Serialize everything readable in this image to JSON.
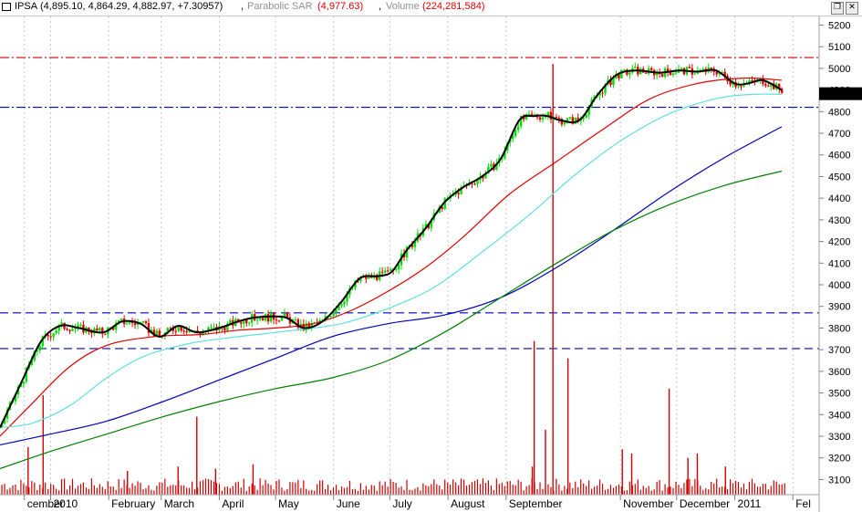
{
  "header": {
    "symbol": "IPSA",
    "ohlc": "(4,895.10, 4,864.29, 4,882.97, +7.30957)",
    "separator1": ",",
    "sar_label": "Parabolic SAR",
    "sar_value": "(4,977.63)",
    "separator2": ",",
    "volume_label": "Volume",
    "volume_value": "(224,281,584)"
  },
  "window_buttons": [
    "restore",
    "close"
  ],
  "colors": {
    "up_candle": "#00e000",
    "down_candle": "#e00000",
    "price_line": "#000000",
    "ma_red": "#e00000",
    "ma_cyan": "#5fe0e0",
    "ma_blue": "#0000c0",
    "ma_green": "#008000",
    "volume": "#d00000",
    "ref_red": "#d00000",
    "ref_blue": "#0000c0",
    "last_price_bg": "#000000",
    "last_price_fg": "#00ff00"
  },
  "chart_data": {
    "type": "candlestick",
    "ylim": [
      3030,
      5240
    ],
    "y_ticks": [
      3100,
      3200,
      3300,
      3400,
      3500,
      3600,
      3700,
      3800,
      3900,
      4000,
      4100,
      4200,
      4300,
      4400,
      4500,
      4600,
      4700,
      4800,
      4900,
      5000,
      5100,
      5200
    ],
    "last_price": "4882.97",
    "x_labels": [
      "cember",
      "2010",
      "February",
      "March",
      "April",
      "May",
      "June",
      "July",
      "August",
      "September",
      "November",
      "December",
      "2011",
      "Fel"
    ],
    "x_label_days": [
      -14,
      0,
      31,
      59,
      90,
      120,
      151,
      181,
      212,
      243,
      304,
      334,
      365,
      396
    ],
    "x_range_days": [
      -27,
      410
    ],
    "date_origin": "2010-01-01",
    "horizontal_levels": [
      {
        "value": 5050,
        "color": "red",
        "style": "dash-dot"
      },
      {
        "value": 4820,
        "color": "blue",
        "style": "dash-dot"
      },
      {
        "value": 3870,
        "color": "blue",
        "style": "dashed"
      },
      {
        "value": 3705,
        "color": "blue",
        "style": "dashed"
      }
    ],
    "price_path": [
      {
        "x": -27,
        "y": 3340
      },
      {
        "x": -15,
        "y": 3560
      },
      {
        "x": -5,
        "y": 3740
      },
      {
        "x": 5,
        "y": 3810
      },
      {
        "x": 15,
        "y": 3800
      },
      {
        "x": 28,
        "y": 3780
      },
      {
        "x": 38,
        "y": 3830
      },
      {
        "x": 48,
        "y": 3820
      },
      {
        "x": 58,
        "y": 3760
      },
      {
        "x": 68,
        "y": 3810
      },
      {
        "x": 78,
        "y": 3780
      },
      {
        "x": 90,
        "y": 3800
      },
      {
        "x": 100,
        "y": 3830
      },
      {
        "x": 110,
        "y": 3850
      },
      {
        "x": 125,
        "y": 3850
      },
      {
        "x": 135,
        "y": 3800
      },
      {
        "x": 145,
        "y": 3830
      },
      {
        "x": 155,
        "y": 3920
      },
      {
        "x": 165,
        "y": 4030
      },
      {
        "x": 175,
        "y": 4040
      },
      {
        "x": 182,
        "y": 4060
      },
      {
        "x": 190,
        "y": 4160
      },
      {
        "x": 200,
        "y": 4260
      },
      {
        "x": 210,
        "y": 4380
      },
      {
        "x": 220,
        "y": 4450
      },
      {
        "x": 230,
        "y": 4500
      },
      {
        "x": 240,
        "y": 4580
      },
      {
        "x": 250,
        "y": 4760
      },
      {
        "x": 258,
        "y": 4780
      },
      {
        "x": 265,
        "y": 4780
      },
      {
        "x": 272,
        "y": 4760
      },
      {
        "x": 282,
        "y": 4760
      },
      {
        "x": 292,
        "y": 4880
      },
      {
        "x": 302,
        "y": 4970
      },
      {
        "x": 312,
        "y": 4990
      },
      {
        "x": 325,
        "y": 4980
      },
      {
        "x": 335,
        "y": 4990
      },
      {
        "x": 345,
        "y": 4985
      },
      {
        "x": 355,
        "y": 4990
      },
      {
        "x": 365,
        "y": 4930
      },
      {
        "x": 372,
        "y": 4930
      },
      {
        "x": 380,
        "y": 4945
      },
      {
        "x": 390,
        "y": 4900
      }
    ],
    "series": [
      {
        "name": "",
        "color": "red",
        "points": [
          {
            "x": -27,
            "y": 3300
          },
          {
            "x": -10,
            "y": 3450
          },
          {
            "x": 10,
            "y": 3620
          },
          {
            "x": 30,
            "y": 3720
          },
          {
            "x": 55,
            "y": 3760
          },
          {
            "x": 80,
            "y": 3770
          },
          {
            "x": 100,
            "y": 3790
          },
          {
            "x": 120,
            "y": 3800
          },
          {
            "x": 140,
            "y": 3820
          },
          {
            "x": 160,
            "y": 3880
          },
          {
            "x": 180,
            "y": 3970
          },
          {
            "x": 200,
            "y": 4080
          },
          {
            "x": 220,
            "y": 4220
          },
          {
            "x": 245,
            "y": 4420
          },
          {
            "x": 270,
            "y": 4570
          },
          {
            "x": 295,
            "y": 4720
          },
          {
            "x": 320,
            "y": 4860
          },
          {
            "x": 345,
            "y": 4930
          },
          {
            "x": 370,
            "y": 4955
          },
          {
            "x": 390,
            "y": 4945
          }
        ]
      },
      {
        "name": "",
        "color": "cyan",
        "points": [
          {
            "x": -27,
            "y": 3340
          },
          {
            "x": -10,
            "y": 3360
          },
          {
            "x": 10,
            "y": 3440
          },
          {
            "x": 30,
            "y": 3570
          },
          {
            "x": 50,
            "y": 3670
          },
          {
            "x": 75,
            "y": 3730
          },
          {
            "x": 100,
            "y": 3760
          },
          {
            "x": 130,
            "y": 3790
          },
          {
            "x": 155,
            "y": 3820
          },
          {
            "x": 180,
            "y": 3890
          },
          {
            "x": 205,
            "y": 3990
          },
          {
            "x": 230,
            "y": 4150
          },
          {
            "x": 255,
            "y": 4320
          },
          {
            "x": 280,
            "y": 4510
          },
          {
            "x": 305,
            "y": 4670
          },
          {
            "x": 330,
            "y": 4790
          },
          {
            "x": 355,
            "y": 4860
          },
          {
            "x": 375,
            "y": 4880
          },
          {
            "x": 390,
            "y": 4880
          }
        ]
      },
      {
        "name": "",
        "color": "blue",
        "points": [
          {
            "x": -27,
            "y": 3260
          },
          {
            "x": 0,
            "y": 3310
          },
          {
            "x": 30,
            "y": 3370
          },
          {
            "x": 60,
            "y": 3460
          },
          {
            "x": 90,
            "y": 3560
          },
          {
            "x": 120,
            "y": 3660
          },
          {
            "x": 150,
            "y": 3760
          },
          {
            "x": 180,
            "y": 3820
          },
          {
            "x": 210,
            "y": 3860
          },
          {
            "x": 240,
            "y": 3940
          },
          {
            "x": 270,
            "y": 4080
          },
          {
            "x": 300,
            "y": 4250
          },
          {
            "x": 330,
            "y": 4430
          },
          {
            "x": 360,
            "y": 4590
          },
          {
            "x": 390,
            "y": 4730
          }
        ]
      },
      {
        "name": "",
        "color": "green",
        "points": [
          {
            "x": -27,
            "y": 3150
          },
          {
            "x": 0,
            "y": 3230
          },
          {
            "x": 30,
            "y": 3310
          },
          {
            "x": 60,
            "y": 3390
          },
          {
            "x": 90,
            "y": 3460
          },
          {
            "x": 120,
            "y": 3520
          },
          {
            "x": 150,
            "y": 3570
          },
          {
            "x": 180,
            "y": 3650
          },
          {
            "x": 210,
            "y": 3780
          },
          {
            "x": 240,
            "y": 3940
          },
          {
            "x": 270,
            "y": 4100
          },
          {
            "x": 300,
            "y": 4250
          },
          {
            "x": 330,
            "y": 4370
          },
          {
            "x": 360,
            "y": 4460
          },
          {
            "x": 390,
            "y": 4525
          }
        ]
      }
    ],
    "volume_max_level": 5050,
    "volume_spikes": [
      {
        "x": -12,
        "y": 3250
      },
      {
        "x": -4,
        "y": 3490
      },
      {
        "x": 78,
        "y": 3390
      },
      {
        "x": 41,
        "y": 3140
      },
      {
        "x": 68,
        "y": 3160
      },
      {
        "x": 88,
        "y": 3150
      },
      {
        "x": 108,
        "y": 3170
      },
      {
        "x": 258,
        "y": 3740
      },
      {
        "x": 264,
        "y": 3330
      },
      {
        "x": 268,
        "y": 5020
      },
      {
        "x": 276,
        "y": 3660
      },
      {
        "x": 257,
        "y": 3160
      },
      {
        "x": 305,
        "y": 3240
      },
      {
        "x": 310,
        "y": 3220
      },
      {
        "x": 330,
        "y": 3520
      },
      {
        "x": 345,
        "y": 3220
      },
      {
        "x": 340,
        "y": 3200
      },
      {
        "x": 360,
        "y": 3160
      }
    ],
    "volume_baseline_level": 3030
  }
}
